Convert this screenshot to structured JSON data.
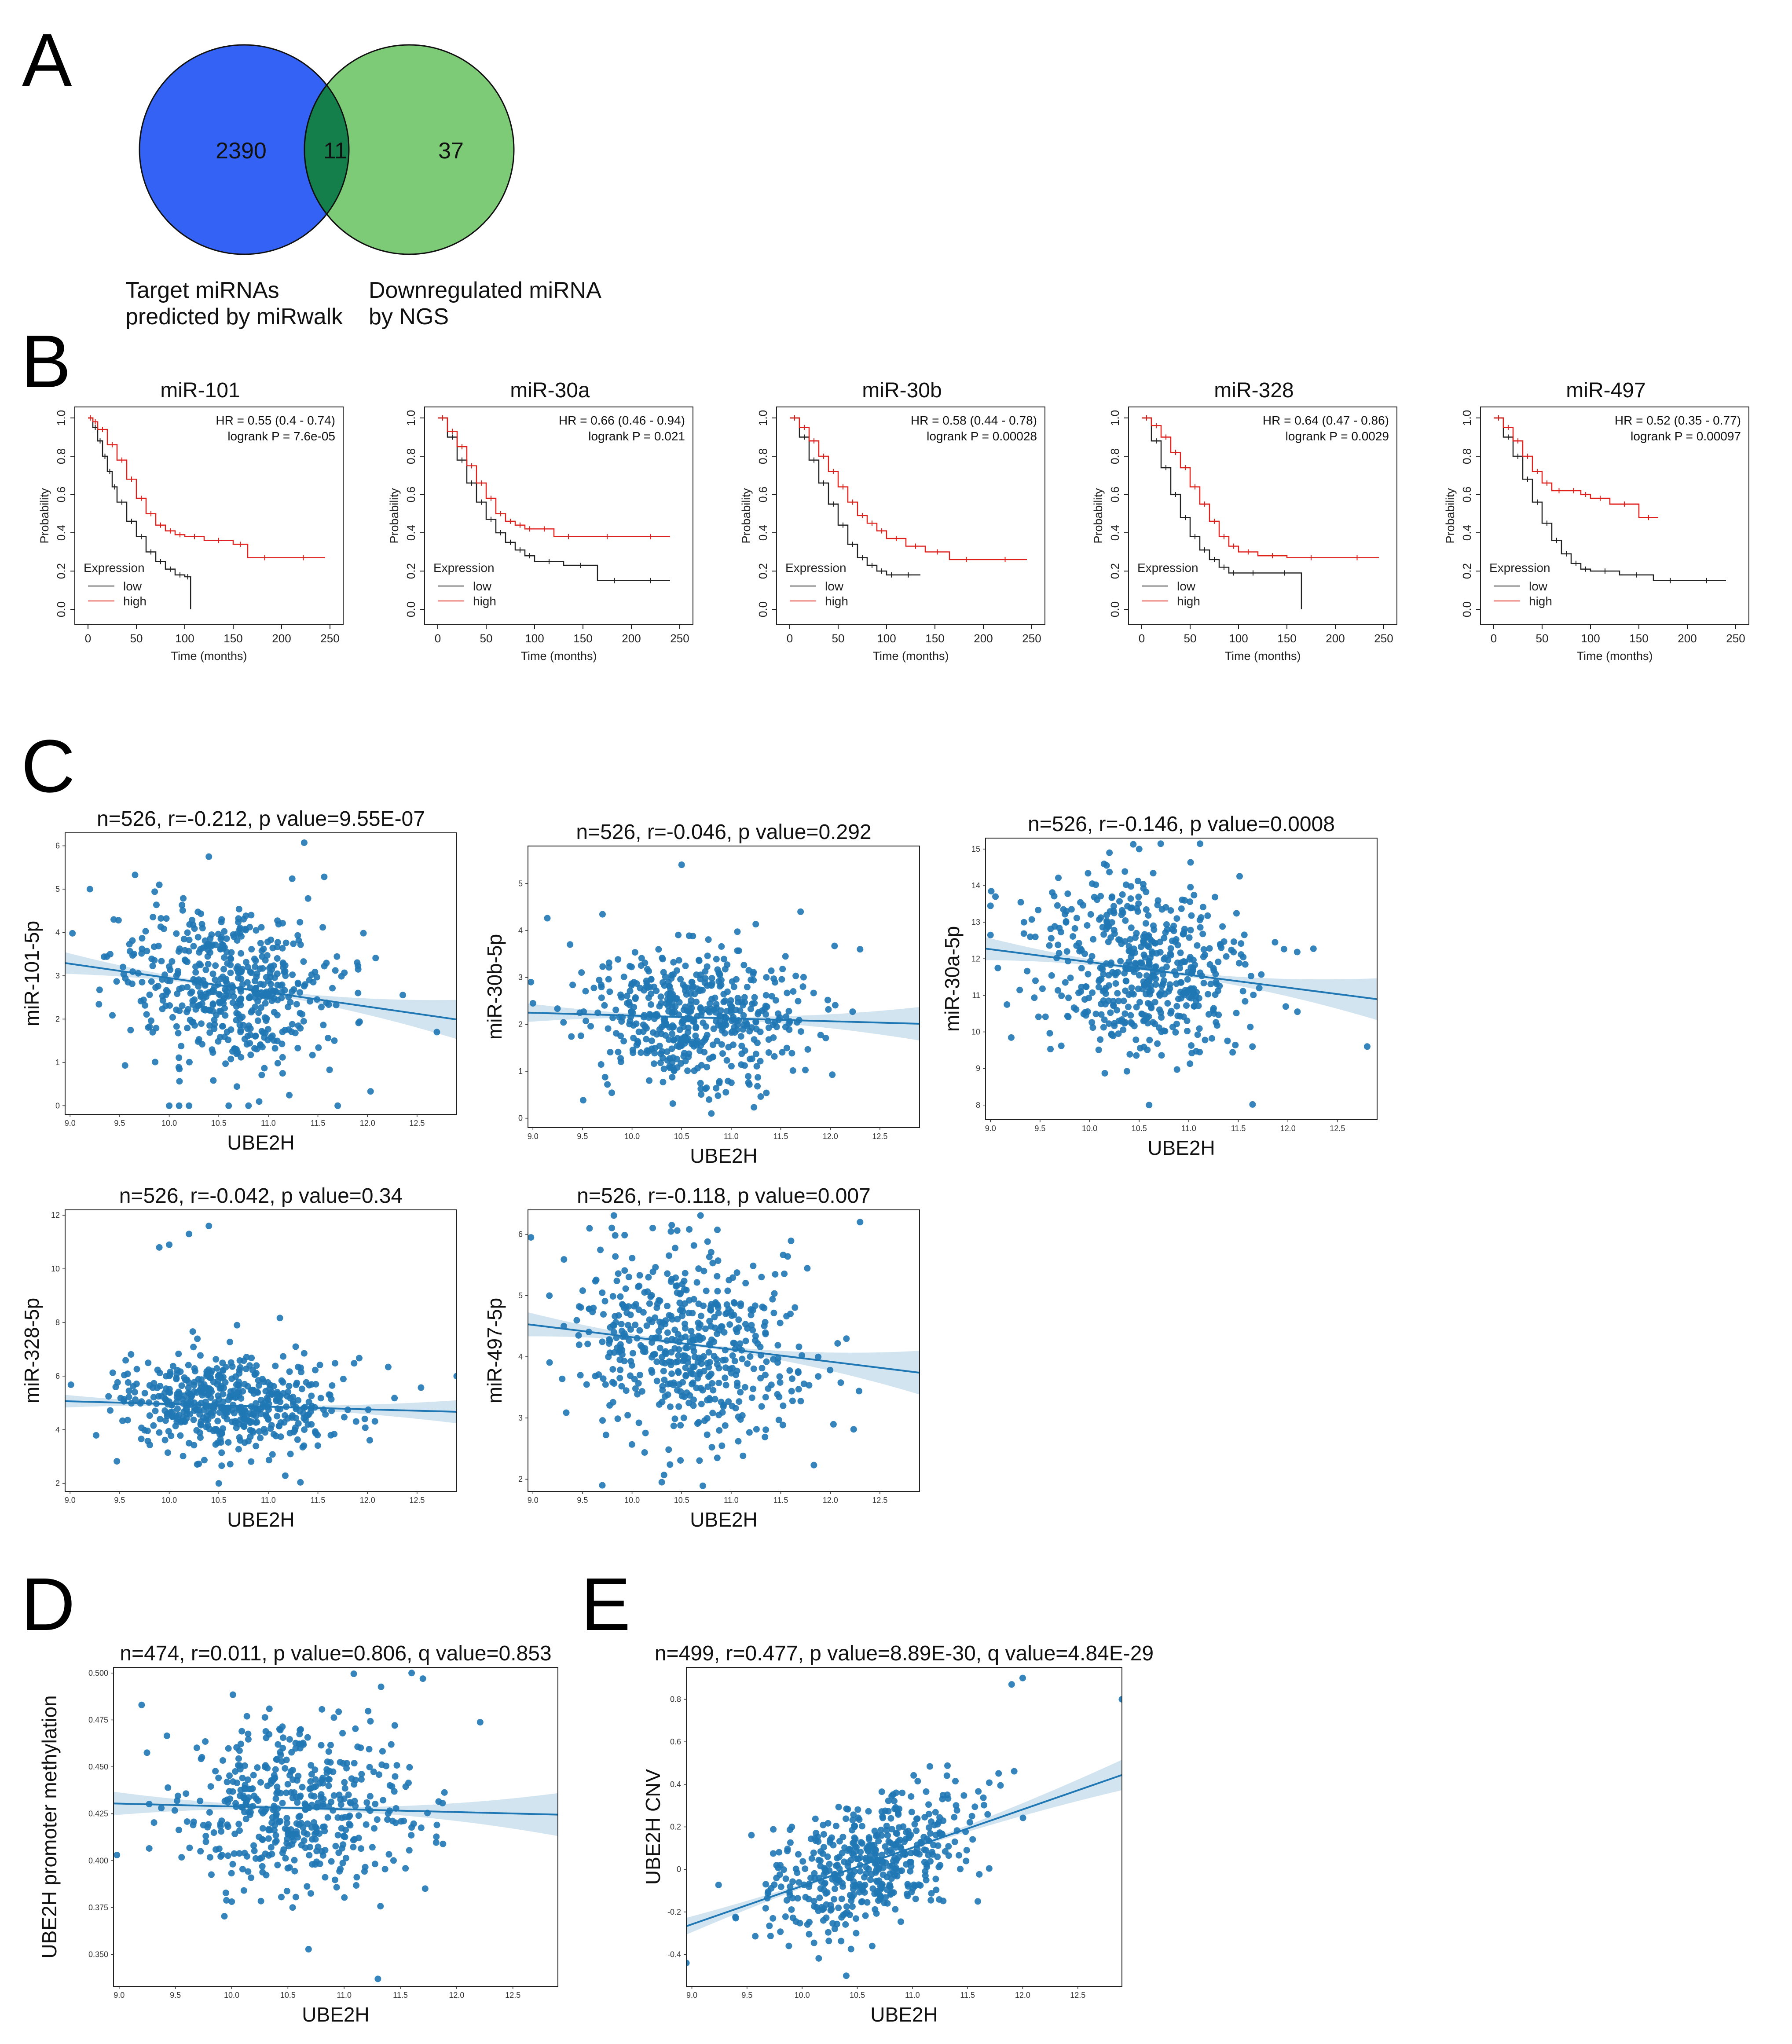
{
  "panels": {
    "A": "A",
    "B": "B",
    "C": "C",
    "D": "D",
    "E": "E"
  },
  "venn": {
    "left_count": "2390",
    "overlap_count": "11",
    "right_count": "37",
    "left_caption": [
      "Target miRNAs",
      "predicted by miRwalk"
    ],
    "right_caption": [
      "Downregulated miRNA",
      "by NGS"
    ],
    "left_color": "#3462f4",
    "right_color": "#7dcb77",
    "overlap_color": "#157f4c"
  },
  "km_common": {
    "xlabel": "Time (months)",
    "ylabel": "Probability",
    "x_ticks": [
      "0",
      "50",
      "100",
      "150",
      "200",
      "250"
    ],
    "y_ticks": [
      "0.0",
      "0.2",
      "0.4",
      "0.6",
      "0.8",
      "1.0"
    ],
    "legend_title": "Expression",
    "legend_low": "low",
    "legend_high": "high",
    "low_color": "#222222",
    "high_color": "#e0211b"
  },
  "chart_data": [
    {
      "type": "line",
      "kind": "kaplan-meier",
      "title": "miR-101",
      "hr": "HR = 0.55 (0.4 - 0.74)",
      "logrank": "logrank P = 7.6e-05",
      "xlim": [
        0,
        250
      ],
      "ylim": [
        0,
        1
      ],
      "series": [
        {
          "name": "low",
          "x": [
            0,
            5,
            10,
            15,
            20,
            25,
            30,
            40,
            50,
            60,
            70,
            80,
            90,
            100,
            106
          ],
          "y": [
            1.0,
            0.95,
            0.88,
            0.8,
            0.72,
            0.64,
            0.56,
            0.46,
            0.38,
            0.3,
            0.25,
            0.21,
            0.18,
            0.17,
            0.0
          ]
        },
        {
          "name": "high",
          "x": [
            0,
            5,
            10,
            20,
            30,
            40,
            50,
            60,
            70,
            80,
            90,
            100,
            120,
            150,
            165,
            200,
            245
          ],
          "y": [
            1.0,
            0.98,
            0.94,
            0.86,
            0.78,
            0.68,
            0.58,
            0.5,
            0.44,
            0.41,
            0.39,
            0.38,
            0.36,
            0.34,
            0.27,
            0.27,
            0.27
          ]
        }
      ]
    },
    {
      "type": "line",
      "kind": "kaplan-meier",
      "title": "miR-30a",
      "hr": "HR = 0.66 (0.46 - 0.94)",
      "logrank": "logrank P = 0.021",
      "xlim": [
        0,
        250
      ],
      "ylim": [
        0,
        1
      ],
      "series": [
        {
          "name": "low",
          "x": [
            0,
            10,
            20,
            30,
            40,
            50,
            60,
            70,
            80,
            90,
            100,
            130,
            165,
            200,
            240
          ],
          "y": [
            1.0,
            0.9,
            0.78,
            0.66,
            0.56,
            0.47,
            0.4,
            0.35,
            0.31,
            0.28,
            0.25,
            0.23,
            0.15,
            0.15,
            0.15
          ]
        },
        {
          "name": "high",
          "x": [
            0,
            10,
            20,
            30,
            40,
            50,
            60,
            70,
            80,
            90,
            100,
            120,
            150,
            200,
            240
          ],
          "y": [
            1.0,
            0.93,
            0.85,
            0.75,
            0.66,
            0.58,
            0.5,
            0.46,
            0.44,
            0.42,
            0.42,
            0.38,
            0.38,
            0.38,
            0.38
          ]
        }
      ]
    },
    {
      "type": "line",
      "kind": "kaplan-meier",
      "title": "miR-30b",
      "hr": "HR = 0.58 (0.44 - 0.78)",
      "logrank": "logrank P = 0.00028",
      "xlim": [
        0,
        250
      ],
      "ylim": [
        0,
        1
      ],
      "series": [
        {
          "name": "low",
          "x": [
            0,
            10,
            20,
            30,
            40,
            50,
            60,
            70,
            80,
            90,
            100,
            110,
            135
          ],
          "y": [
            1.0,
            0.9,
            0.78,
            0.66,
            0.55,
            0.44,
            0.34,
            0.27,
            0.23,
            0.2,
            0.18,
            0.18,
            0.18
          ]
        },
        {
          "name": "high",
          "x": [
            0,
            10,
            20,
            30,
            40,
            50,
            60,
            70,
            80,
            90,
            100,
            120,
            140,
            165,
            200,
            245
          ],
          "y": [
            1.0,
            0.95,
            0.88,
            0.8,
            0.72,
            0.64,
            0.56,
            0.49,
            0.45,
            0.41,
            0.37,
            0.33,
            0.3,
            0.26,
            0.26,
            0.26
          ]
        }
      ]
    },
    {
      "type": "line",
      "kind": "kaplan-meier",
      "title": "miR-328",
      "hr": "HR = 0.64 (0.47 - 0.86)",
      "logrank": "logrank P = 0.0029",
      "xlim": [
        0,
        250
      ],
      "ylim": [
        0,
        1
      ],
      "series": [
        {
          "name": "low",
          "x": [
            0,
            10,
            20,
            30,
            40,
            50,
            60,
            70,
            80,
            90,
            100,
            130,
            165
          ],
          "y": [
            1.0,
            0.88,
            0.74,
            0.6,
            0.48,
            0.38,
            0.31,
            0.26,
            0.22,
            0.19,
            0.19,
            0.19,
            0.0
          ]
        },
        {
          "name": "high",
          "x": [
            0,
            10,
            20,
            30,
            40,
            50,
            60,
            70,
            80,
            90,
            100,
            120,
            150,
            200,
            245
          ],
          "y": [
            1.0,
            0.96,
            0.9,
            0.82,
            0.74,
            0.64,
            0.55,
            0.46,
            0.38,
            0.33,
            0.3,
            0.28,
            0.27,
            0.27,
            0.27
          ]
        }
      ]
    },
    {
      "type": "line",
      "kind": "kaplan-meier",
      "title": "miR-497",
      "hr": "HR = 0.52 (0.35 - 0.77)",
      "logrank": "logrank P = 0.00097",
      "xlim": [
        0,
        250
      ],
      "ylim": [
        0,
        1
      ],
      "series": [
        {
          "name": "low",
          "x": [
            0,
            10,
            20,
            30,
            40,
            50,
            60,
            70,
            80,
            90,
            100,
            130,
            165,
            200,
            240
          ],
          "y": [
            1.0,
            0.9,
            0.8,
            0.68,
            0.56,
            0.45,
            0.36,
            0.29,
            0.24,
            0.21,
            0.2,
            0.18,
            0.15,
            0.15,
            0.15
          ]
        },
        {
          "name": "high",
          "x": [
            0,
            10,
            20,
            30,
            40,
            50,
            60,
            75,
            90,
            100,
            120,
            150,
            170
          ],
          "y": [
            1.0,
            0.95,
            0.88,
            0.8,
            0.72,
            0.66,
            0.62,
            0.62,
            0.6,
            0.58,
            0.55,
            0.48,
            0.48
          ]
        }
      ]
    },
    {
      "type": "scatter",
      "title": "n=526, r=-0.212, p value=9.55E-07",
      "xlabel": "UBE2H",
      "ylabel": "miR-101-5p",
      "xlim": [
        8.95,
        12.9
      ],
      "ylim": [
        -0.2,
        6.3
      ],
      "x_ticks": [
        9.0,
        9.5,
        10.0,
        10.5,
        11.0,
        11.5,
        12.0,
        12.5
      ],
      "y_ticks": [
        0,
        1,
        2,
        3,
        4,
        5,
        6
      ],
      "n": 526,
      "x_mean": 10.6,
      "x_sd": 0.55,
      "y_mean": 2.75,
      "y_sd": 0.95,
      "slope": -0.33,
      "seed": 11,
      "extra_points": [
        [
          10.0,
          0
        ],
        [
          10.1,
          0
        ],
        [
          10.2,
          0
        ],
        [
          10.6,
          0
        ],
        [
          10.8,
          0
        ],
        [
          11.7,
          0
        ],
        [
          10.4,
          5.75
        ],
        [
          9.9,
          5.1
        ],
        [
          9.2,
          5.0
        ],
        [
          12.7,
          1.7
        ]
      ]
    },
    {
      "type": "scatter",
      "title": "n=526, r=-0.046, p value=0.292",
      "xlabel": "UBE2H",
      "ylabel": "miR-30b-5p",
      "xlim": [
        8.95,
        12.9
      ],
      "ylim": [
        -0.2,
        5.8
      ],
      "x_ticks": [
        9.0,
        9.5,
        10.0,
        10.5,
        11.0,
        11.5,
        12.0,
        12.5
      ],
      "y_ticks": [
        0,
        1,
        2,
        3,
        4,
        5
      ],
      "n": 526,
      "x_mean": 10.6,
      "x_sd": 0.55,
      "y_mean": 2.15,
      "y_sd": 0.75,
      "slope": -0.06,
      "seed": 23,
      "extra_points": [
        [
          10.5,
          5.4
        ],
        [
          11.7,
          4.4
        ],
        [
          12.3,
          3.6
        ],
        [
          10.8,
          0.1
        ],
        [
          8.98,
          2.9
        ]
      ]
    },
    {
      "type": "scatter",
      "title": "n=526, r=-0.146, p value=0.0008",
      "xlabel": "UBE2H",
      "ylabel": "miR-30a-5p",
      "xlim": [
        8.95,
        12.9
      ],
      "ylim": [
        7.6,
        15.3
      ],
      "x_ticks": [
        9.0,
        9.5,
        10.0,
        10.5,
        11.0,
        11.5,
        12.0,
        12.5
      ],
      "y_ticks": [
        8,
        9,
        10,
        11,
        12,
        13,
        14,
        15
      ],
      "n": 526,
      "x_mean": 10.6,
      "x_sd": 0.55,
      "y_mean": 11.7,
      "y_sd": 1.2,
      "slope": -0.35,
      "seed": 37,
      "extra_points": [
        [
          10.5,
          15.0
        ],
        [
          10.2,
          14.9
        ],
        [
          12.8,
          9.6
        ],
        [
          9.05,
          13.7
        ],
        [
          10.6,
          8.0
        ]
      ]
    },
    {
      "type": "scatter",
      "title": "n=526, r=-0.042, p value=0.34",
      "xlabel": "UBE2H",
      "ylabel": "miR-328-5p",
      "xlim": [
        8.95,
        12.9
      ],
      "ylim": [
        1.7,
        12.2
      ],
      "x_ticks": [
        9.0,
        9.5,
        10.0,
        10.5,
        11.0,
        11.5,
        12.0,
        12.5
      ],
      "y_ticks": [
        2,
        4,
        6,
        8,
        10,
        12
      ],
      "n": 526,
      "x_mean": 10.6,
      "x_sd": 0.55,
      "y_mean": 4.9,
      "y_sd": 0.9,
      "slope": -0.1,
      "seed": 41,
      "extra_points": [
        [
          9.9,
          10.8
        ],
        [
          10.0,
          10.9
        ],
        [
          10.2,
          11.3
        ],
        [
          10.4,
          11.6
        ],
        [
          12.9,
          6.0
        ],
        [
          10.5,
          2.0
        ]
      ]
    },
    {
      "type": "scatter",
      "title": "n=526, r=-0.118, p value=0.007",
      "xlabel": "UBE2H",
      "ylabel": "miR-497-5p",
      "xlim": [
        8.95,
        12.9
      ],
      "ylim": [
        1.8,
        6.4
      ],
      "x_ticks": [
        9.0,
        9.5,
        10.0,
        10.5,
        11.0,
        11.5,
        12.0,
        12.5
      ],
      "y_ticks": [
        2,
        3,
        4,
        5,
        6
      ],
      "n": 526,
      "x_mean": 10.6,
      "x_sd": 0.55,
      "y_mean": 4.2,
      "y_sd": 0.75,
      "slope": -0.2,
      "seed": 53,
      "extra_points": [
        [
          12.3,
          6.2
        ],
        [
          10.4,
          6.15
        ],
        [
          9.7,
          1.9
        ],
        [
          10.3,
          1.95
        ],
        [
          8.98,
          5.95
        ]
      ]
    },
    {
      "type": "scatter",
      "title": "n=474, r=0.011, p value=0.806, q value=0.853",
      "xlabel": "UBE2H",
      "ylabel": "UBE2H promoter methylation",
      "xlim": [
        8.95,
        12.9
      ],
      "ylim": [
        0.333,
        0.503
      ],
      "x_ticks": [
        9.0,
        9.5,
        10.0,
        10.5,
        11.0,
        11.5,
        12.0,
        12.5
      ],
      "y_ticks": [
        0.35,
        0.375,
        0.4,
        0.425,
        0.45,
        0.475,
        0.5
      ],
      "y_tick_labels": [
        "0.350",
        "0.375",
        "0.400",
        "0.425",
        "0.450",
        "0.475",
        "0.500"
      ],
      "n": 474,
      "x_mean": 10.6,
      "x_sd": 0.55,
      "y_mean": 0.428,
      "y_sd": 0.024,
      "slope": -0.0015,
      "seed": 67,
      "extra_points": [
        [
          11.3,
          0.337
        ],
        [
          11.6,
          0.5
        ],
        [
          11.7,
          0.497
        ],
        [
          9.2,
          0.483
        ],
        [
          8.98,
          0.403
        ]
      ]
    },
    {
      "type": "scatter",
      "title": "n=499, r=0.477, p value=8.89E-30, q value=4.84E-29",
      "xlabel": "UBE2H",
      "ylabel": "UBE2H CNV",
      "xlim": [
        8.95,
        12.9
      ],
      "ylim": [
        -0.55,
        0.95
      ],
      "x_ticks": [
        9.0,
        9.5,
        10.0,
        10.5,
        11.0,
        11.5,
        12.0,
        12.5
      ],
      "y_ticks": [
        -0.4,
        -0.2,
        0.0,
        0.2,
        0.4,
        0.6,
        0.8
      ],
      "n": 499,
      "x_mean": 10.6,
      "x_sd": 0.5,
      "y_mean": 0.03,
      "y_sd": 0.15,
      "slope": 0.18,
      "seed": 79,
      "extra_points": [
        [
          12.0,
          0.9
        ],
        [
          12.9,
          0.8
        ],
        [
          11.9,
          0.87
        ],
        [
          8.95,
          -0.44
        ],
        [
          10.4,
          -0.5
        ]
      ]
    }
  ]
}
